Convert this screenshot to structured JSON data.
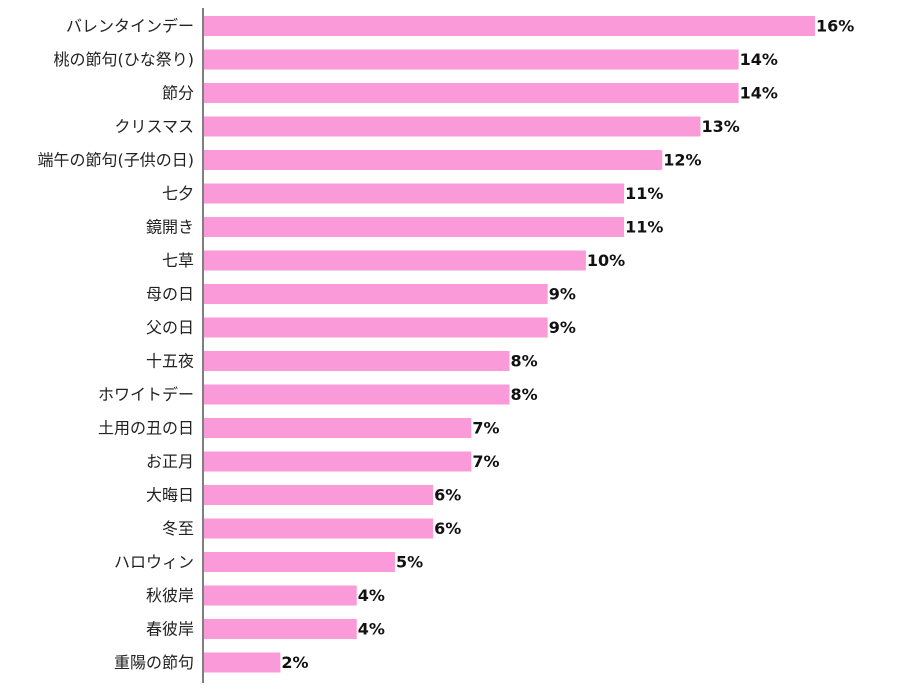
{
  "chart_data": {
    "type": "bar",
    "orientation": "horizontal",
    "categories": [
      "バレンタインデー",
      "桃の節句(ひな祭り)",
      "節分",
      "クリスマス",
      "端午の節句(子供の日)",
      "七夕",
      "鏡開き",
      "七草",
      "母の日",
      "父の日",
      "十五夜",
      "ホワイトデー",
      "土用の丑の日",
      "お正月",
      "大晦日",
      "冬至",
      "ハロウィン",
      "秋彼岸",
      "春彼岸",
      "重陽の節句"
    ],
    "values": [
      16,
      14,
      14,
      13,
      12,
      11,
      11,
      10,
      9,
      9,
      8,
      8,
      7,
      7,
      6,
      6,
      5,
      4,
      4,
      2
    ],
    "value_labels": [
      "16%",
      "14%",
      "14%",
      "13%",
      "12%",
      "11%",
      "11%",
      "10%",
      "9%",
      "9%",
      "8%",
      "8%",
      "7%",
      "7%",
      "6%",
      "6%",
      "5%",
      "4%",
      "4%",
      "2%"
    ],
    "bar_color": "#fa9ad8",
    "axis_color": "#555555",
    "title": "",
    "xlabel": "",
    "ylabel": "",
    "xlim": [
      0,
      16
    ],
    "grid": false,
    "legend": "none"
  }
}
